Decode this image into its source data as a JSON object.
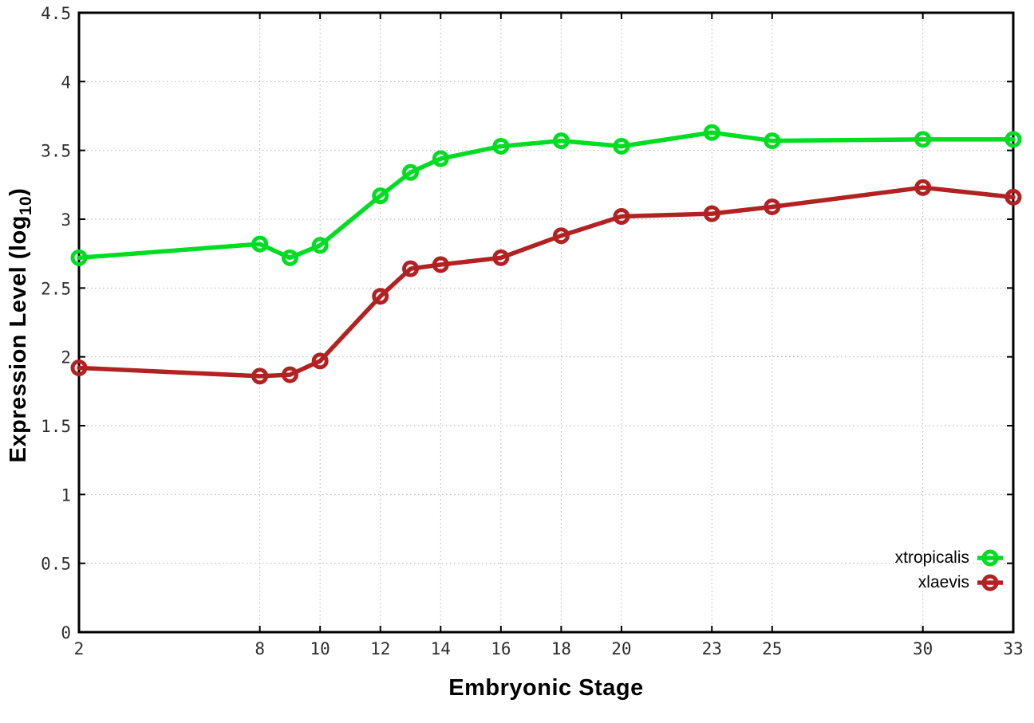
{
  "chart_data": {
    "type": "line",
    "title": "",
    "xlabel": "Embryonic Stage",
    "ylabel": "Expression Level (log10)",
    "ylabel_parts": {
      "pre": "Expression Level (log",
      "sub": "10",
      "post": ")"
    },
    "xlim": [
      2,
      33
    ],
    "ylim": [
      0,
      4.5
    ],
    "grid": true,
    "legend_position": "inside bottom-right",
    "x": [
      2,
      8,
      9,
      10,
      12,
      13,
      14,
      16,
      18,
      20,
      23,
      25,
      30,
      33
    ],
    "xticks": [
      2,
      8,
      10,
      12,
      14,
      16,
      18,
      20,
      23,
      25,
      30,
      33
    ],
    "xtick_labels": [
      "2",
      "8",
      "10",
      "12",
      "14",
      "16",
      "18",
      "20",
      "23",
      "25",
      "30",
      "33"
    ],
    "yticks": [
      0,
      0.5,
      1,
      1.5,
      2,
      2.5,
      3,
      3.5,
      4,
      4.5
    ],
    "ytick_labels": [
      "0",
      "0.5",
      "1",
      "1.5",
      "2",
      "2.5",
      "3",
      "3.5",
      "4",
      "4.5"
    ],
    "series": [
      {
        "name": "xtropicalis",
        "color": "#00dd22",
        "marker": "open-circle",
        "values": [
          2.72,
          2.82,
          2.72,
          2.81,
          3.17,
          3.34,
          3.44,
          3.53,
          3.57,
          3.53,
          3.63,
          3.57,
          3.58,
          3.58
        ]
      },
      {
        "name": "xlaevis",
        "color": "#b22222",
        "marker": "open-circle",
        "values": [
          1.92,
          1.86,
          1.87,
          1.97,
          2.44,
          2.64,
          2.67,
          2.72,
          2.88,
          3.02,
          3.04,
          3.09,
          3.23,
          3.16
        ]
      }
    ],
    "grid_color": "#b3b3b3",
    "border_color": "#000000",
    "background_color": "#ffffff",
    "tick_label_color": "#2e2e2e"
  }
}
